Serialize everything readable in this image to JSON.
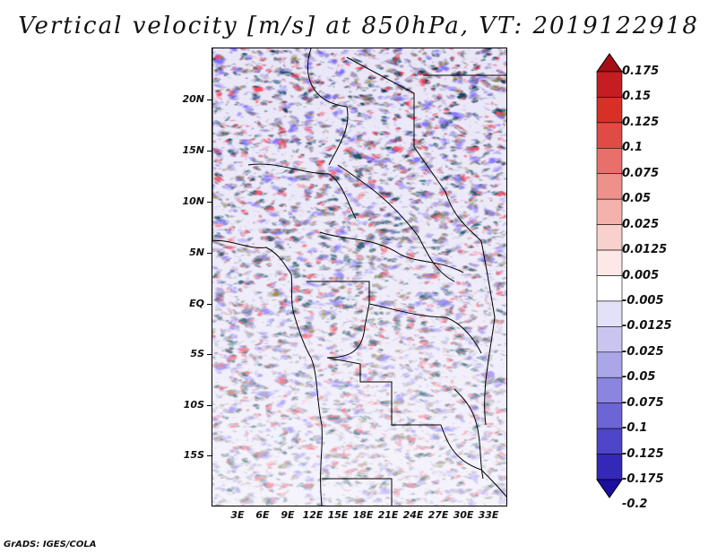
{
  "title": "Vertical velocity [m/s] at 850hPa, VT: 2019122918",
  "credit": "GrADS: IGES/COLA",
  "map": {
    "variable": "Vertical velocity",
    "units": "m/s",
    "level": "850hPa",
    "valid_time": "2019122918",
    "lat_labels": [
      "20N",
      "15N",
      "10N",
      "5N",
      "EQ",
      "5S",
      "10S",
      "15S"
    ],
    "lon_labels": [
      "3E",
      "6E",
      "9E",
      "12E",
      "15E",
      "18E",
      "21E",
      "24E",
      "27E",
      "30E",
      "33E"
    ]
  },
  "colorbar": {
    "labels": [
      "0.175",
      "0.15",
      "0.125",
      "0.1",
      "0.075",
      "0.05",
      "0.025",
      "0.0125",
      "0.005",
      "-0.005",
      "-0.0125",
      "-0.025",
      "-0.05",
      "-0.075",
      "-0.1",
      "-0.125",
      "-0.175",
      "-0.2"
    ],
    "colors": [
      "#a50f15",
      "#c41e22",
      "#d73027",
      "#e04b45",
      "#e8706a",
      "#ee918b",
      "#f4b2ad",
      "#f8d0cc",
      "#fce9e7",
      "#ffffff",
      "#e3e1f7",
      "#c9c5f0",
      "#aba6e8",
      "#8c85df",
      "#6d64d5",
      "#4f45c8",
      "#3428b8",
      "#1b0fa0"
    ]
  }
}
